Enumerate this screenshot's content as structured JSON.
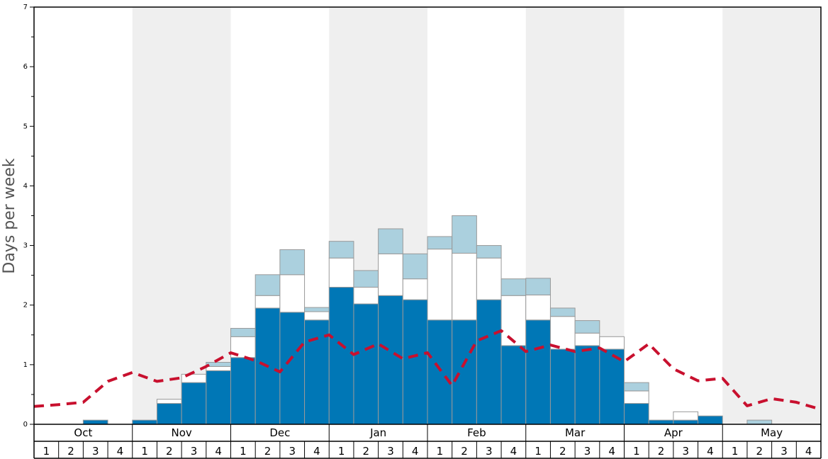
{
  "chart_data": {
    "type": "bar",
    "title": "",
    "ylabel": "Days per week",
    "xlabel": "",
    "ylim": [
      0,
      7
    ],
    "yticks": [
      0,
      1,
      2,
      3,
      4,
      5,
      6,
      7
    ],
    "months": [
      "Oct",
      "Nov",
      "Dec",
      "Jan",
      "Feb",
      "Mar",
      "Apr",
      "May"
    ],
    "weeks": [
      "1",
      "2",
      "3",
      "4"
    ],
    "grid": false,
    "stacked": true,
    "colors": {
      "bottom": "#0077b6",
      "middle": "#ffffff",
      "top": "#abd0de",
      "line": "#c8102e",
      "shade": "#efefef"
    },
    "series": [
      {
        "values": [
          0,
          0,
          0.07,
          0,
          0.07,
          0.35,
          0.7,
          0.9,
          1.12,
          1.95,
          1.88,
          1.75,
          2.3,
          2.02,
          2.16,
          2.09,
          1.75,
          1.75,
          2.09,
          1.32,
          1.75,
          1.26,
          1.32,
          1.26,
          0.35,
          0.07,
          0.07,
          0.14,
          0,
          0,
          0,
          0
        ]
      },
      {
        "values": [
          0,
          0,
          0,
          0,
          0,
          0.07,
          0.14,
          0.07,
          0.35,
          0.21,
          0.63,
          0.14,
          0.49,
          0.28,
          0.7,
          0.35,
          1.19,
          1.12,
          0.7,
          0.84,
          0.42,
          0.55,
          0.21,
          0.21,
          0.21,
          0,
          0.14,
          0,
          0,
          0,
          0,
          0
        ]
      },
      {
        "values": [
          0,
          0,
          0,
          0,
          0,
          0,
          0,
          0.07,
          0.14,
          0.35,
          0.42,
          0.07,
          0.28,
          0.28,
          0.42,
          0.42,
          0.21,
          0.63,
          0.21,
          0.28,
          0.28,
          0.14,
          0.21,
          0,
          0.14,
          0,
          0,
          0,
          0,
          0.07,
          0,
          0
        ]
      },
      {
        "values": [
          0.3,
          0.33,
          0.37,
          0.72,
          0.87,
          0.72,
          0.78,
          0.97,
          1.2,
          1.07,
          0.88,
          1.38,
          1.5,
          1.17,
          1.35,
          1.1,
          1.2,
          0.65,
          1.4,
          1.57,
          1.22,
          1.33,
          1.22,
          1.28,
          1.05,
          1.35,
          0.93,
          0.73,
          0.77,
          0.31,
          0.43,
          0.37,
          0.25
        ],
        "style": "dashed"
      }
    ]
  }
}
